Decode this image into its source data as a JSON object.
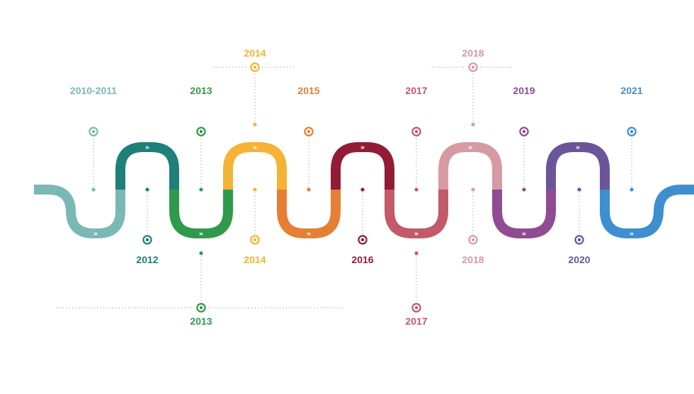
{
  "segments": [
    {
      "color": "#7ab8b6"
    },
    {
      "color": "#1f7f79"
    },
    {
      "color": "#2f9a4c"
    },
    {
      "color": "#f5b335"
    },
    {
      "color": "#e67e33"
    },
    {
      "color": "#931c35"
    },
    {
      "color": "#c25a6a"
    },
    {
      "color": "#d69aa3"
    },
    {
      "color": "#8f4c93"
    },
    {
      "color": "#6b559a"
    },
    {
      "color": "#3d8fd0"
    }
  ],
  "chevron_glyph": "»",
  "milestones": [
    {
      "label": "2010-2011",
      "color": "#7ab8b6",
      "side": "above",
      "level": "near"
    },
    {
      "label": "2012",
      "color": "#1f7f79",
      "side": "below",
      "level": "near"
    },
    {
      "label": "2013",
      "color": "#2f9a4c",
      "side": "above",
      "level": "near"
    },
    {
      "label": "2013",
      "color": "#2f9a4c",
      "side": "below",
      "level": "far"
    },
    {
      "label": "2014",
      "color": "#f5b335",
      "side": "above",
      "level": "far"
    },
    {
      "label": "2014",
      "color": "#f5b335",
      "side": "below",
      "level": "near"
    },
    {
      "label": "2015",
      "color": "#e67e33",
      "side": "above",
      "level": "near"
    },
    {
      "label": "2016",
      "color": "#931c35",
      "side": "below",
      "level": "near"
    },
    {
      "label": "2017",
      "color": "#c25a6a",
      "side": "above",
      "level": "near"
    },
    {
      "label": "2017",
      "color": "#c25a6a",
      "side": "below",
      "level": "far"
    },
    {
      "label": "2018",
      "color": "#d69aa3",
      "side": "above",
      "level": "far"
    },
    {
      "label": "2018",
      "color": "#d69aa3",
      "side": "below",
      "level": "near"
    },
    {
      "label": "2019",
      "color": "#8f4c93",
      "side": "above",
      "level": "near"
    },
    {
      "label": "2020",
      "color": "#6b559a",
      "side": "below",
      "level": "near"
    },
    {
      "label": "2021",
      "color": "#3d8fd0",
      "side": "above",
      "level": "near"
    }
  ]
}
